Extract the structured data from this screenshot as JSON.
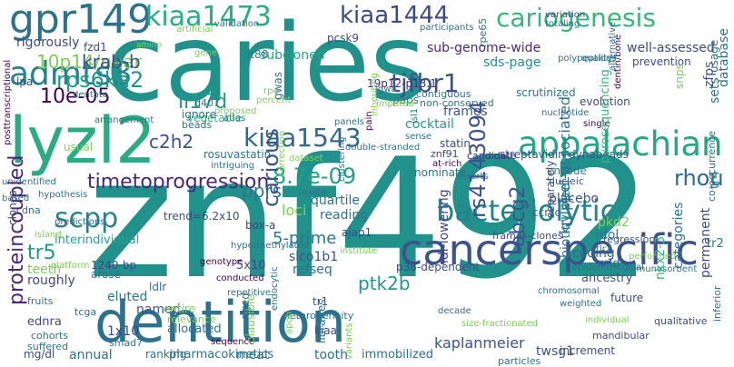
{
  "words": [
    {
      "text": "znf492",
      "color": "#21918c"
    },
    {
      "text": "caries",
      "color": "#21918c"
    },
    {
      "text": "dentition",
      "color": "#2c718e"
    },
    {
      "text": "lyzl2",
      "color": "#27ad81"
    },
    {
      "text": "cancerspecific",
      "color": "#3b528b"
    },
    {
      "text": "appalachian",
      "color": "#22a884"
    },
    {
      "text": "gpr149",
      "color": "#2c728e"
    },
    {
      "text": "kiaa1473",
      "color": "#28ae80"
    },
    {
      "text": "cariogenesis",
      "color": "#35b779"
    },
    {
      "text": "kiaa1444",
      "color": "#3e4989"
    },
    {
      "text": "admts3",
      "color": "#26828e"
    },
    {
      "text": "kiaa1543",
      "color": "#31688e"
    },
    {
      "text": "bacteriolytic",
      "color": "#26828e"
    },
    {
      "text": "timetoprogression",
      "color": "#482878"
    },
    {
      "text": "rps6ka2",
      "color": "#1f9a8a"
    },
    {
      "text": "tjfbr1",
      "color": "#3b528b"
    },
    {
      "text": "10p14/near",
      "color": "#7ad151"
    },
    {
      "text": "rs4143094",
      "color": "#3b528b"
    },
    {
      "text": "8.7e-09",
      "color": "#1fa187"
    },
    {
      "text": "proteincoupled",
      "color": "#482878"
    },
    {
      "text": "10e-05",
      "color": "#440154"
    },
    {
      "text": "scpp",
      "color": "#26828e"
    },
    {
      "text": "rhou",
      "color": "#31688e"
    },
    {
      "text": "abcg2",
      "color": "#39558c"
    },
    {
      "text": "carious",
      "color": "#39558c"
    },
    {
      "text": "ptk2b",
      "color": "#1f9a8a"
    },
    {
      "text": "il17d",
      "color": "#1f9a8a"
    },
    {
      "text": "c2h2",
      "color": "#3b528b"
    },
    {
      "text": "pprs",
      "color": "#2a788e"
    },
    {
      "text": "krab-b",
      "color": "#3b528b"
    },
    {
      "text": "kruppel-associated",
      "color": "#2c728e"
    },
    {
      "text": "kaplanmeier",
      "color": "#3b528b"
    },
    {
      "text": "biotinylated",
      "color": "#2a788e"
    },
    {
      "text": "subcloned",
      "color": "#22a884"
    },
    {
      "text": "tr5",
      "color": "#1f9a8a"
    },
    {
      "text": "refseq",
      "color": "#2c728e"
    },
    {
      "text": "5-prime",
      "color": "#2a788e"
    },
    {
      "text": "loci",
      "color": "#7ad151"
    },
    {
      "text": "sds-page",
      "color": "#21918c"
    },
    {
      "text": "permanent",
      "color": "#3e4989"
    },
    {
      "text": "database",
      "color": "#2c718e"
    },
    {
      "text": "well-assessed",
      "color": "#3e4989"
    },
    {
      "text": "categories",
      "color": "#2c728e"
    },
    {
      "text": "zfps",
      "color": "#3b528b"
    },
    {
      "text": "sub-genome-wide",
      "color": "#482878"
    },
    {
      "text": "19p12-p13.1",
      "color": "#482878"
    },
    {
      "text": "ift88",
      "color": "#2a788e"
    },
    {
      "text": "gwas",
      "color": "#2c728e"
    },
    {
      "text": "frames",
      "color": "#3b528b"
    },
    {
      "text": "statin",
      "color": "#3e4989"
    },
    {
      "text": "scrutinized",
      "color": "#2c728e"
    },
    {
      "text": "evolution",
      "color": "#3e4989"
    },
    {
      "text": "paps",
      "color": "#2a788e"
    },
    {
      "text": "cocktail",
      "color": "#1f9a8a"
    },
    {
      "text": "streptavidin-dynabeads",
      "color": "#39558c"
    },
    {
      "text": "pyrosequencing",
      "color": "#35b779"
    },
    {
      "text": "vegetable",
      "color": "#35b779"
    },
    {
      "text": "rosuvastatin",
      "color": "#2c728e"
    },
    {
      "text": "znf91",
      "color": "#3e4989"
    },
    {
      "text": "candidate",
      "color": "#482878"
    },
    {
      "text": "nominate",
      "color": "#2c728e"
    },
    {
      "text": "encode",
      "color": "#2a788e"
    },
    {
      "text": "nucleic",
      "color": "#3b528b"
    },
    {
      "text": "placebo",
      "color": "#39558c"
    },
    {
      "text": "ccrcc",
      "color": "#31688e"
    },
    {
      "text": "pkd2",
      "color": "#7ad151"
    },
    {
      "text": "idol",
      "color": "#2a788e"
    },
    {
      "text": "coding",
      "color": "#31688e"
    },
    {
      "text": "mid",
      "color": "#31688e"
    },
    {
      "text": "ancestry",
      "color": "#3b528b"
    },
    {
      "text": "regression",
      "color": "#3b528b"
    },
    {
      "text": "separately",
      "color": "#3b528b"
    },
    {
      "text": "ldl-lowering",
      "color": "#3e4989"
    },
    {
      "text": "nkx2-3",
      "color": "#35b779"
    },
    {
      "text": "slco1b1",
      "color": "#3b528b"
    },
    {
      "text": "p38-dependent",
      "color": "#3e4989"
    },
    {
      "text": "quartile",
      "color": "#2c728e"
    },
    {
      "text": "reading",
      "color": "#2c728e"
    },
    {
      "text": "future",
      "color": "#3e4989"
    },
    {
      "text": "tooth",
      "color": "#2c728e"
    },
    {
      "text": "meat",
      "color": "#2c728e"
    },
    {
      "text": "ranking",
      "color": "#2c728e"
    },
    {
      "text": "annual",
      "color": "#2c728e"
    },
    {
      "text": "pharmacokinetics",
      "color": "#2c728e"
    },
    {
      "text": "immobilized",
      "color": "#2c728e"
    },
    {
      "text": "twsg1",
      "color": "#3b528b"
    },
    {
      "text": "increment",
      "color": "#3e4989"
    },
    {
      "text": "mandibular",
      "color": "#3e4989"
    },
    {
      "text": "size-fractionated",
      "color": "#7ad151"
    },
    {
      "text": "teeth",
      "color": "#7ad151"
    },
    {
      "text": "roughly",
      "color": "#3e4989"
    },
    {
      "text": "ldlr",
      "color": "#2c728e"
    },
    {
      "text": "named",
      "color": "#3b528b"
    },
    {
      "text": "eluted",
      "color": "#2c728e"
    },
    {
      "text": "allocated",
      "color": "#2c728e"
    },
    {
      "text": "1x10",
      "color": "#3e4989"
    },
    {
      "text": "1240-bp",
      "color": "#3e4989"
    },
    {
      "text": "5x10",
      "color": "#3e4989"
    },
    {
      "text": "box-a",
      "color": "#3e4989"
    },
    {
      "text": "ajap1",
      "color": "#3e4989"
    },
    {
      "text": "trend=6.2x10",
      "color": "#3e4989"
    },
    {
      "text": "ignore",
      "color": "#2c728e"
    },
    {
      "text": "d407",
      "color": "#2c728e"
    },
    {
      "text": "beads",
      "color": "#2c728e"
    },
    {
      "text": "conducted",
      "color": "#440154"
    },
    {
      "text": "interindividual",
      "color": "#22a884"
    },
    {
      "text": "arose",
      "color": "#2c728e"
    },
    {
      "text": "fzd1",
      "color": "#3e4989"
    },
    {
      "text": "rigorously",
      "color": "#3e4989"
    },
    {
      "text": "lpa",
      "color": "#3e4989"
    },
    {
      "text": "pcsk9",
      "color": "#3e4989"
    },
    {
      "text": "ednra",
      "color": "#3e4989"
    },
    {
      "text": "mg/dl",
      "color": "#3e4989"
    },
    {
      "text": "kiaa",
      "color": "#3e4989"
    },
    {
      "text": "tr1",
      "color": "#3e4989"
    },
    {
      "text": "tr2",
      "color": "#2c728e"
    },
    {
      "text": "tr4",
      "color": "#2c728e"
    },
    {
      "text": "sets",
      "color": "#2c728e"
    },
    {
      "text": "usage",
      "color": "#2c728e"
    },
    {
      "text": "prevention",
      "color": "#3e4989"
    },
    {
      "text": "snps",
      "color": "#7ad151"
    },
    {
      "text": "frames-clones",
      "color": "#3e4989"
    },
    {
      "text": "clones",
      "color": "#3e4989"
    },
    {
      "text": "usual",
      "color": "#7ad151"
    },
    {
      "text": "tcga",
      "color": "#2c728e"
    },
    {
      "text": "smad7",
      "color": "#2c728e"
    },
    {
      "text": "aged",
      "color": "#2c728e"
    },
    {
      "text": "entire",
      "color": "#7ad151"
    },
    {
      "text": "relevance",
      "color": "#7ad151"
    },
    {
      "text": "plausible",
      "color": "#7ad151"
    },
    {
      "text": "heterogeneity",
      "color": "#2c728e"
    },
    {
      "text": "libraries",
      "color": "#2c728e"
    },
    {
      "text": "imputed",
      "color": "#7ad151"
    },
    {
      "text": "rpe65",
      "color": "#2c728e"
    },
    {
      "text": "gwa",
      "color": "#2c728e"
    },
    {
      "text": "non-conserved",
      "color": "#2c728e"
    },
    {
      "text": "contiguous",
      "color": "#2c728e"
    },
    {
      "text": "individual",
      "color": "#7ad151"
    },
    {
      "text": "weighted",
      "color": "#2c728e"
    },
    {
      "text": "particles",
      "color": "#2c728e"
    },
    {
      "text": "inferior",
      "color": "#2c728e"
    },
    {
      "text": "co-occurrence",
      "color": "#2c728e"
    },
    {
      "text": "qualitative",
      "color": "#3e4989"
    },
    {
      "text": "variation",
      "color": "#3e4989"
    },
    {
      "text": "totaling",
      "color": "#2c728e"
    },
    {
      "text": "validation",
      "color": "#2c728e"
    },
    {
      "text": "participants",
      "color": "#2c728e"
    },
    {
      "text": "cohorts",
      "color": "#2c728e"
    },
    {
      "text": "suffered",
      "color": "#2c728e"
    },
    {
      "text": "fruits",
      "color": "#2c728e"
    },
    {
      "text": "cdna",
      "color": "#2c728e"
    },
    {
      "text": "based",
      "color": "#2c728e"
    },
    {
      "text": "unidentified",
      "color": "#2c728e"
    },
    {
      "text": "hypothesis",
      "color": "#2c728e"
    },
    {
      "text": "predictions",
      "color": "#2c728e"
    },
    {
      "text": "platform",
      "color": "#7ad151"
    },
    {
      "text": "island",
      "color": "#7ad151"
    },
    {
      "text": "hypermethylated",
      "color": "#2c728e"
    },
    {
      "text": "sequence",
      "color": "#440154"
    },
    {
      "text": "genotype",
      "color": "#440154"
    },
    {
      "text": "intriguing",
      "color": "#2c728e"
    },
    {
      "text": "double-stranded",
      "color": "#2c728e"
    },
    {
      "text": "dataset",
      "color": "#7ad151"
    },
    {
      "text": "at-rich",
      "color": "#440154"
    },
    {
      "text": "chromosomal",
      "color": "#2c728e"
    },
    {
      "text": "epidemiological",
      "color": "#2c728e"
    },
    {
      "text": "decade",
      "color": "#2c728e"
    },
    {
      "text": "immunosorbent",
      "color": "#2c728e"
    },
    {
      "text": "performed",
      "color": "#7ad151"
    },
    {
      "text": "gene",
      "color": "#7ad151"
    },
    {
      "text": "dentate",
      "color": "#2c728e"
    },
    {
      "text": "posttranscriptional",
      "color": "#440154"
    },
    {
      "text": "arrangement",
      "color": "#2c728e"
    },
    {
      "text": "rpe",
      "color": "#7ad151"
    },
    {
      "text": "percent",
      "color": "#7ad151"
    },
    {
      "text": "proposed",
      "color": "#7ad151"
    },
    {
      "text": "atlas",
      "color": "#2c728e"
    },
    {
      "text": "pain",
      "color": "#440154"
    },
    {
      "text": "isl1",
      "color": "#2c728e"
    },
    {
      "text": "panels",
      "color": "#2c728e"
    },
    {
      "text": "nucleotide",
      "color": "#2c728e"
    },
    {
      "text": "quality",
      "color": "#2c728e"
    },
    {
      "text": "amino",
      "color": "#7ad151"
    },
    {
      "text": "single",
      "color": "#440154"
    },
    {
      "text": "dentin/bone",
      "color": "#440154"
    },
    {
      "text": "alternative",
      "color": "#2c728e"
    },
    {
      "text": "polypeptides",
      "color": "#2c728e"
    },
    {
      "text": "artificial",
      "color": "#7ad151"
    },
    {
      "text": "tlr2",
      "color": "#2c728e"
    },
    {
      "text": "inserts",
      "color": "#2c728e"
    },
    {
      "text": "sense",
      "color": "#2c728e"
    },
    {
      "text": "relate",
      "color": "#2c728e"
    },
    {
      "text": "institute",
      "color": "#7ad151"
    },
    {
      "text": "repetitive",
      "color": "#2c728e"
    },
    {
      "text": "clustering",
      "color": "#2c728e"
    },
    {
      "text": "correction",
      "color": "#7ad151"
    },
    {
      "text": "variants",
      "color": "#7ad151"
    },
    {
      "text": "inheriting",
      "color": "#7ad151"
    },
    {
      "text": "apob",
      "color": "#7ad151"
    },
    {
      "text": "endocytic",
      "color": "#2c728e"
    }
  ]
}
